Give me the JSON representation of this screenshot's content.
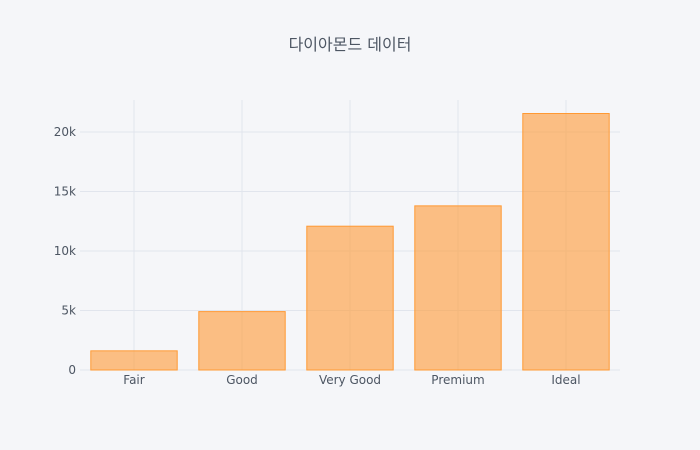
{
  "chart_data": {
    "type": "bar",
    "title": "다이아몬드 데이터",
    "xlabel": "",
    "ylabel": "",
    "categories": [
      "Fair",
      "Good",
      "Very Good",
      "Premium",
      "Ideal"
    ],
    "values": [
      1610,
      4906,
      12082,
      13791,
      21551
    ],
    "ylim": [
      0,
      22685
    ],
    "yticks": [
      0,
      5000,
      10000,
      15000,
      20000
    ],
    "ytick_labels": [
      "0",
      "5k",
      "10k",
      "15k",
      "20k"
    ],
    "grid": true,
    "legend": "none",
    "colors": {
      "bar_fill": "#ff9933",
      "background": "#f5f6f9",
      "text": "#4d5663",
      "grid": "#e1e5ed"
    }
  }
}
